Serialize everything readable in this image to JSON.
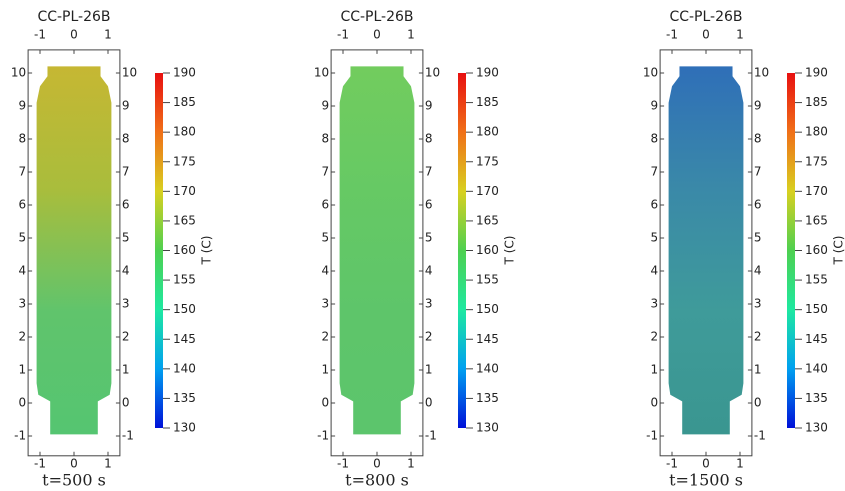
{
  "chart_data": [
    {
      "type": "contour",
      "title": "CC-PL-26B",
      "caption": "t=500 s",
      "xlim": [
        -1.35,
        1.35
      ],
      "xticks": [
        -1,
        0,
        1
      ],
      "ylim": [
        -1.6,
        10.7
      ],
      "yticks": [
        -1,
        0,
        1,
        2,
        3,
        4,
        5,
        6,
        7,
        8,
        9,
        10
      ],
      "field_colors": [
        "#c6b733",
        "#a9bd3c",
        "#60c46c",
        "#55c571"
      ],
      "colorbar_label": "T (C)",
      "clim": [
        130,
        190
      ],
      "cticks": [
        130,
        135,
        140,
        145,
        150,
        155,
        160,
        165,
        170,
        175,
        180,
        185,
        190
      ],
      "colormap": [
        "#0010d8",
        "#00a0f0",
        "#1ee8a0",
        "#4ed050",
        "#d8d020",
        "#f07018",
        "#e81010"
      ]
    },
    {
      "type": "contour",
      "title": "CC-PL-26B",
      "caption": "t=800 s",
      "xlim": [
        -1.35,
        1.35
      ],
      "xticks": [
        -1,
        0,
        1
      ],
      "ylim": [
        -1.6,
        10.7
      ],
      "yticks": [
        -1,
        0,
        1,
        2,
        3,
        4,
        5,
        6,
        7,
        8,
        9,
        10
      ],
      "field_colors": [
        "#72cc5e",
        "#66c964",
        "#5ec56a",
        "#5cc56c"
      ],
      "colorbar_label": "T (C)",
      "clim": [
        130,
        190
      ],
      "cticks": [
        130,
        135,
        140,
        145,
        150,
        155,
        160,
        165,
        170,
        175,
        180,
        185,
        190
      ],
      "colormap": [
        "#0010d8",
        "#00a0f0",
        "#1ee8a0",
        "#4ed050",
        "#d8d020",
        "#f07018",
        "#e81010"
      ]
    },
    {
      "type": "contour",
      "title": "CC-PL-26B",
      "caption": "t=1500 s",
      "xlim": [
        -1.35,
        1.35
      ],
      "xticks": [
        -1,
        0,
        1
      ],
      "ylim": [
        -1.6,
        10.7
      ],
      "yticks": [
        -1,
        0,
        1,
        2,
        3,
        4,
        5,
        6,
        7,
        8,
        9,
        10
      ],
      "field_colors": [
        "#2f6fb8",
        "#3a89a8",
        "#3f9b9a",
        "#3a9690"
      ],
      "colorbar_label": "T (C)",
      "clim": [
        130,
        190
      ],
      "cticks": [
        130,
        135,
        140,
        145,
        150,
        155,
        160,
        165,
        170,
        175,
        180,
        185,
        190
      ],
      "colormap": [
        "#0010d8",
        "#00a0f0",
        "#1ee8a0",
        "#4ed050",
        "#d8d020",
        "#f07018",
        "#e81010"
      ]
    }
  ]
}
